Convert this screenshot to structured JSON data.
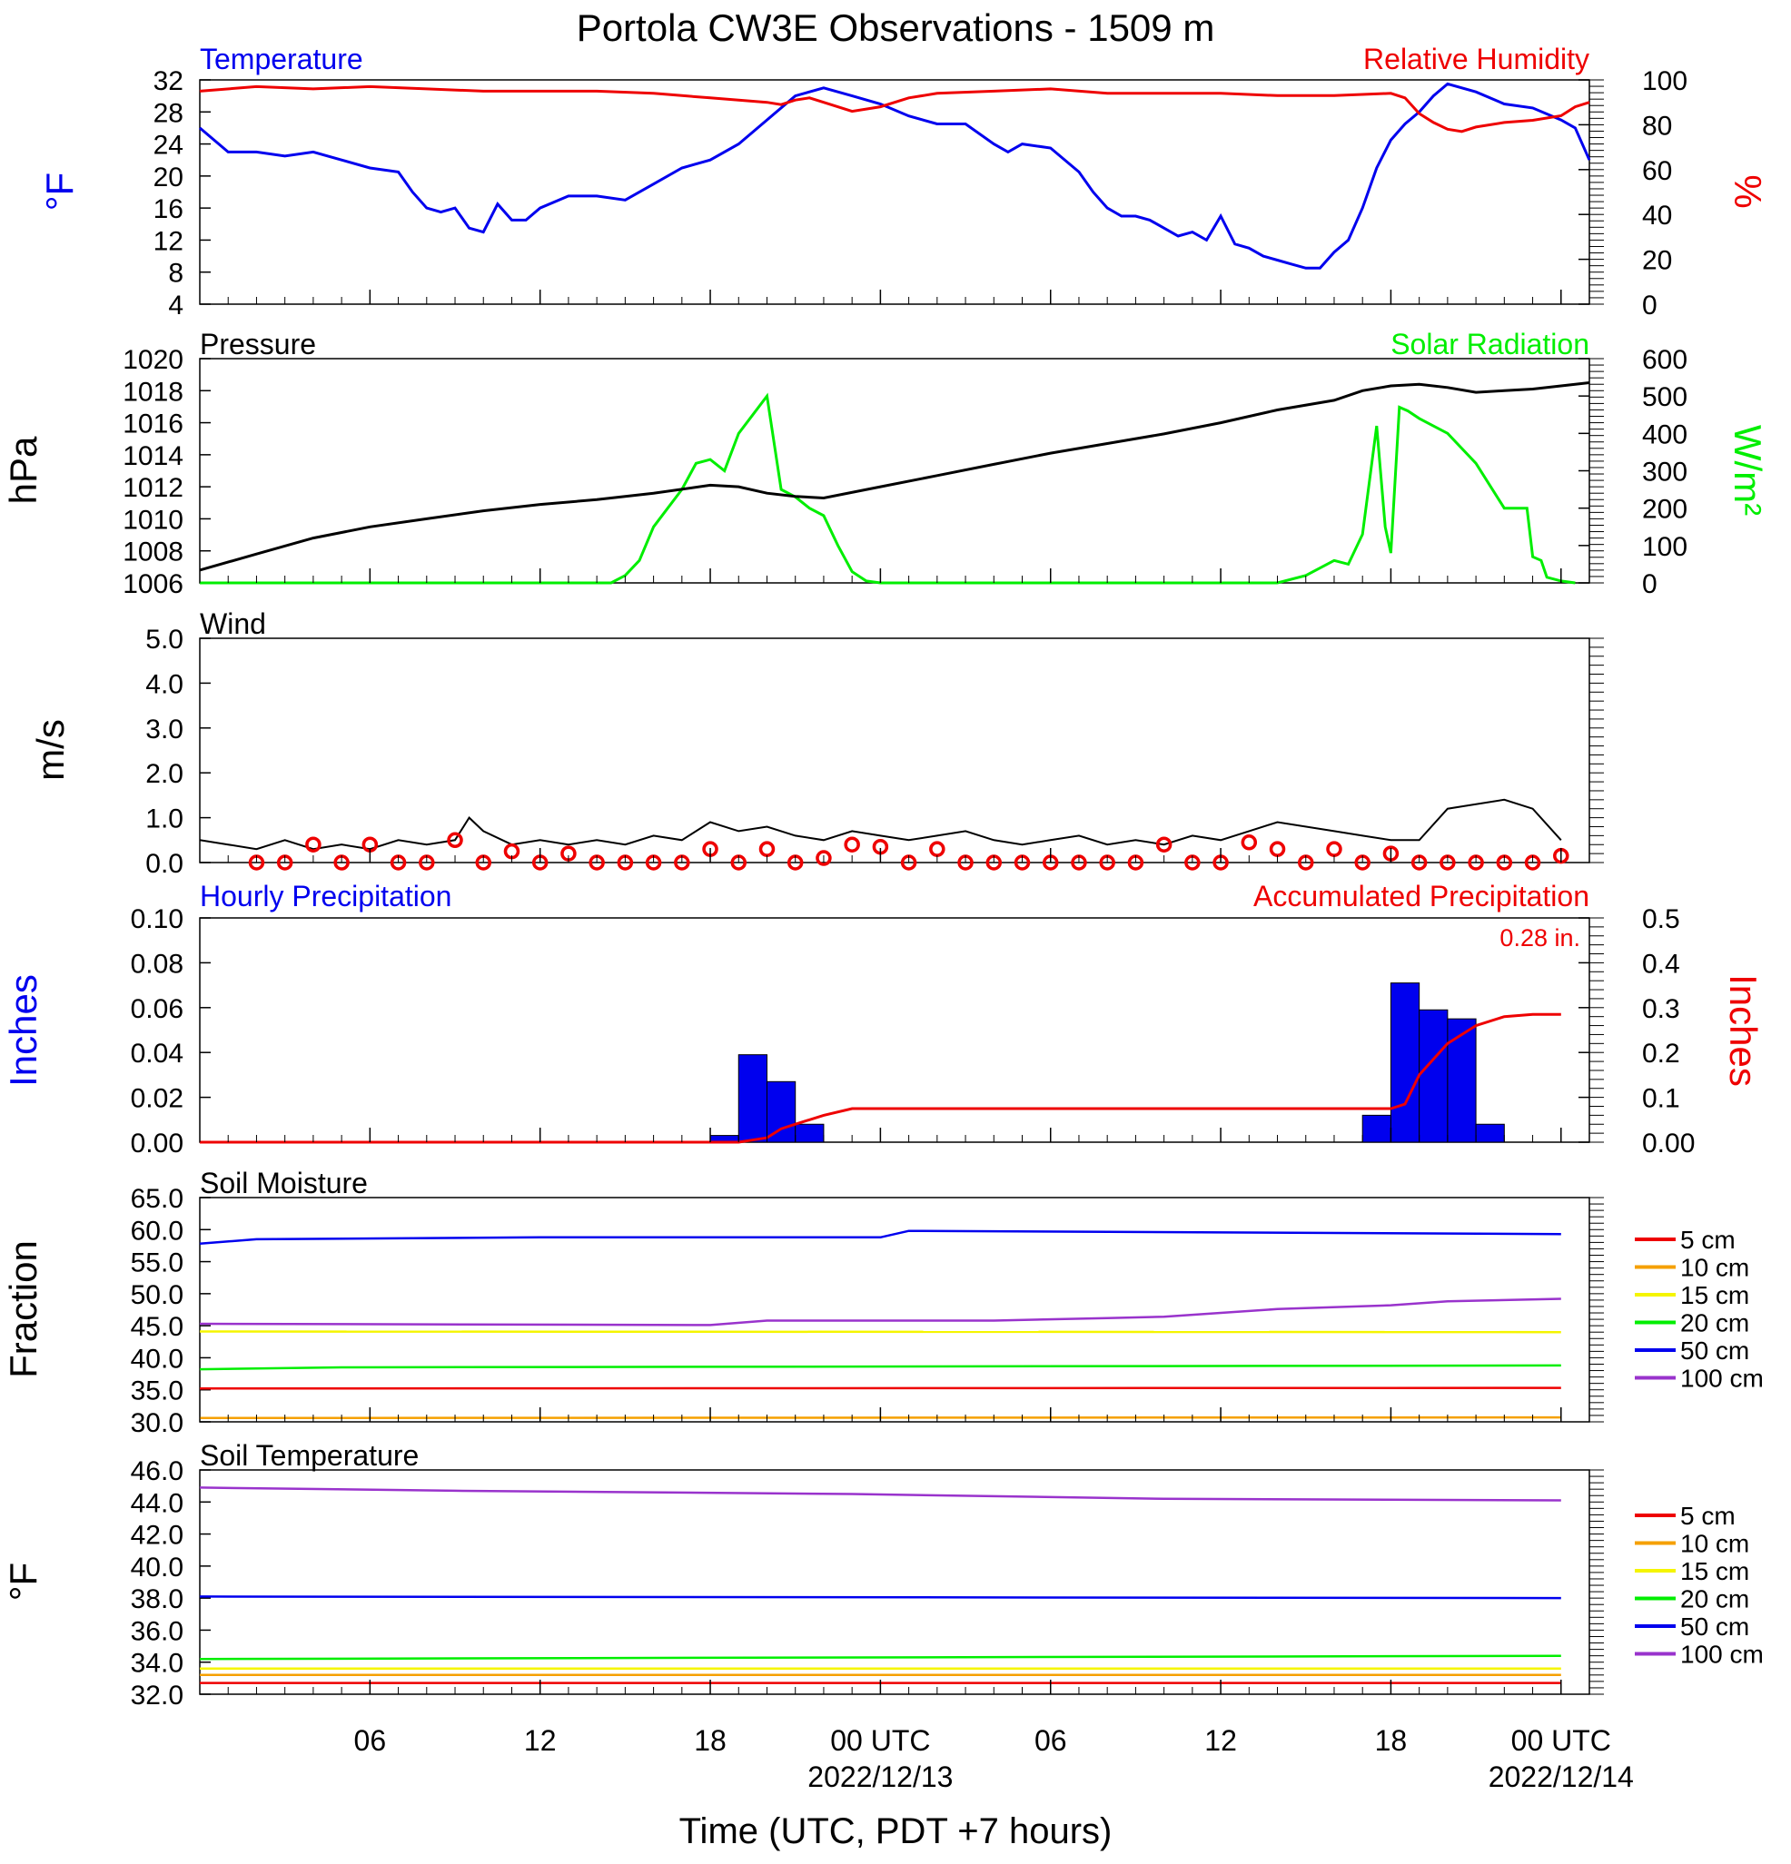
{
  "title": "Portola CW3E Observations - 1509 m",
  "colors": {
    "blue": "#0000ee",
    "red": "#ee0000",
    "green": "#00ee00",
    "orange": "#f5a000",
    "yellow": "#f5f500",
    "purple": "#9933cc",
    "black": "#000000"
  },
  "x_axis": {
    "label": "Time (UTC, PDT +7 hours)",
    "ticks": [
      {
        "h": 6,
        "label": "06",
        "sub": ""
      },
      {
        "h": 12,
        "label": "12",
        "sub": ""
      },
      {
        "h": 18,
        "label": "18",
        "sub": ""
      },
      {
        "h": 24,
        "label": "00 UTC",
        "sub": "2022/12/13"
      },
      {
        "h": 30,
        "label": "06",
        "sub": ""
      },
      {
        "h": 36,
        "label": "12",
        "sub": ""
      },
      {
        "h": 42,
        "label": "18",
        "sub": ""
      },
      {
        "h": 48,
        "label": "00 UTC",
        "sub": "2022/12/14"
      }
    ]
  },
  "legend_soil": [
    "5 cm",
    "10 cm",
    "15 cm",
    "20 cm",
    "50 cm",
    "100 cm"
  ],
  "panels": {
    "temp": {
      "left_title": "Temperature",
      "right_title": "Relative Humidity",
      "left_unit": "°F",
      "right_unit": "%",
      "left_ticks": [
        "4",
        "8",
        "12",
        "16",
        "20",
        "24",
        "28",
        "32"
      ],
      "right_ticks": [
        "0",
        "20",
        "40",
        "60",
        "80",
        "100"
      ]
    },
    "pressure": {
      "left_title": "Pressure",
      "right_title": "Solar Radiation",
      "left_unit": "hPa",
      "right_unit": "W/m²",
      "left_ticks": [
        "1006",
        "1008",
        "1010",
        "1012",
        "1014",
        "1016",
        "1018",
        "1020"
      ],
      "right_ticks": [
        "0",
        "100",
        "200",
        "300",
        "400",
        "500",
        "600"
      ]
    },
    "wind": {
      "left_title": "Wind",
      "left_unit": "m/s",
      "left_ticks": [
        "0.0",
        "1.0",
        "2.0",
        "3.0",
        "4.0",
        "5.0"
      ]
    },
    "precip": {
      "left_title": "Hourly Precipitation",
      "right_title": "Accumulated Precipitation",
      "left_unit": "Inches",
      "right_unit": "Inches",
      "total": "0.28 in.",
      "left_ticks": [
        "0.00",
        "0.02",
        "0.04",
        "0.06",
        "0.08",
        "0.10"
      ],
      "right_ticks": [
        "0.00",
        "0.1",
        "0.2",
        "0.3",
        "0.4",
        "0.5"
      ]
    },
    "soilm": {
      "left_title": "Soil Moisture",
      "left_unit": "Fraction",
      "left_ticks": [
        "30.0",
        "35.0",
        "40.0",
        "45.0",
        "50.0",
        "55.0",
        "60.0",
        "65.0"
      ]
    },
    "soilt": {
      "left_title": "Soil Temperature",
      "left_unit": "°F",
      "left_ticks": [
        "32.0",
        "34.0",
        "36.0",
        "38.0",
        "40.0",
        "42.0",
        "44.0",
        "46.0"
      ]
    }
  },
  "chart_data": [
    {
      "type": "line",
      "panel": "temp",
      "series": [
        {
          "name": "Temperature",
          "axis": "left",
          "x": [
            0,
            1,
            2,
            3,
            4,
            5,
            6,
            7,
            7.5,
            8,
            8.5,
            9,
            9.5,
            10,
            10.5,
            11,
            11.5,
            12,
            13,
            14,
            15,
            16,
            17,
            18,
            19,
            20,
            21,
            22,
            23,
            24,
            25,
            26,
            27,
            28,
            28.5,
            29,
            30,
            31,
            31.5,
            32,
            32.5,
            33,
            33.5,
            34,
            34.5,
            35,
            35.5,
            36,
            36.5,
            37,
            37.5,
            38,
            38.5,
            39,
            39.5,
            40,
            40.5,
            41,
            41.5,
            42,
            42.5,
            43,
            43.5,
            44,
            45,
            46,
            47,
            48,
            48.5,
            49
          ],
          "y": [
            26,
            23,
            23,
            22.5,
            23,
            22,
            21,
            20.5,
            18,
            16,
            15.5,
            16,
            13.5,
            13,
            16.5,
            14.5,
            14.5,
            16,
            17.5,
            17.5,
            17,
            19,
            21,
            22,
            24,
            27,
            30,
            31,
            30,
            29,
            27.5,
            26.5,
            26.5,
            24,
            23,
            24,
            23.5,
            20.5,
            18,
            16,
            15,
            15,
            14.5,
            13.5,
            12.5,
            13,
            12,
            15,
            11.5,
            11,
            10,
            9.5,
            9,
            8.5,
            8.5,
            10.5,
            12,
            16,
            21,
            24.5,
            26.5,
            28,
            30,
            31.5,
            30.5,
            29,
            28.5,
            27,
            26,
            22
          ]
        },
        {
          "name": "Relative Humidity",
          "axis": "right",
          "x": [
            0,
            2,
            4,
            6,
            8,
            10,
            12,
            14,
            16,
            17,
            18,
            19,
            20,
            20.5,
            21,
            21.5,
            22,
            23,
            24,
            25,
            26,
            28,
            30,
            32,
            34,
            36,
            38,
            40,
            42,
            42.5,
            43,
            43.5,
            44,
            44.5,
            45,
            46,
            47,
            48,
            48.5,
            49
          ],
          "y": [
            95,
            97,
            96,
            97,
            96,
            95,
            95,
            95,
            94,
            93,
            92,
            91,
            90,
            89,
            91,
            92,
            90,
            86,
            88,
            92,
            94,
            95,
            96,
            94,
            94,
            94,
            93,
            93,
            94,
            92,
            85,
            81,
            78,
            77,
            79,
            81,
            82,
            84,
            88,
            90
          ]
        }
      ]
    },
    {
      "type": "line",
      "panel": "pressure",
      "series": [
        {
          "name": "Pressure",
          "axis": "left",
          "x": [
            0,
            2,
            4,
            6,
            8,
            10,
            12,
            14,
            16,
            18,
            19,
            20,
            21,
            22,
            24,
            26,
            28,
            30,
            32,
            34,
            36,
            38,
            40,
            41,
            42,
            43,
            44,
            45,
            46,
            47,
            48,
            49
          ],
          "y": [
            1006.8,
            1007.8,
            1008.8,
            1009.5,
            1010,
            1010.5,
            1010.9,
            1011.2,
            1011.6,
            1012.1,
            1012,
            1011.6,
            1011.4,
            1011.3,
            1012,
            1012.7,
            1013.4,
            1014.1,
            1014.7,
            1015.3,
            1016,
            1016.8,
            1017.4,
            1018,
            1018.3,
            1018.4,
            1018.2,
            1017.9,
            1018,
            1018.1,
            1018.3,
            1018.5
          ]
        },
        {
          "name": "Solar Radiation",
          "axis": "right",
          "x": [
            0,
            14.5,
            15,
            15.5,
            16,
            16.5,
            17,
            17.5,
            18,
            18.5,
            19,
            19.5,
            20,
            20.5,
            21,
            21.5,
            22,
            22.5,
            23,
            23.5,
            24,
            30,
            38,
            39,
            40,
            40.5,
            41,
            41.5,
            41.8,
            42,
            42.3,
            42.6,
            43,
            44,
            45,
            46,
            46.8,
            47,
            47.3,
            47.5,
            48,
            48.5
          ],
          "y": [
            0,
            0,
            20,
            60,
            150,
            200,
            250,
            320,
            330,
            300,
            400,
            450,
            500,
            250,
            230,
            200,
            180,
            100,
            30,
            5,
            0,
            0,
            0,
            20,
            60,
            50,
            130,
            420,
            150,
            80,
            470,
            460,
            440,
            400,
            320,
            200,
            200,
            70,
            60,
            15,
            5,
            0
          ]
        }
      ]
    },
    {
      "type": "line",
      "panel": "wind",
      "series": [
        {
          "name": "Wind speed",
          "x": [
            0,
            1,
            2,
            3,
            4,
            5,
            6,
            7,
            8,
            9,
            9.5,
            10,
            11,
            12,
            13,
            14,
            15,
            16,
            17,
            18,
            19,
            20,
            21,
            22,
            23,
            24,
            25,
            26,
            27,
            28,
            29,
            30,
            31,
            32,
            33,
            34,
            35,
            36,
            37,
            38,
            40,
            41,
            42,
            43,
            44,
            45,
            46,
            47,
            48
          ],
          "y": [
            0.5,
            0.4,
            0.3,
            0.5,
            0.3,
            0.4,
            0.3,
            0.5,
            0.4,
            0.5,
            1.0,
            0.7,
            0.4,
            0.5,
            0.4,
            0.5,
            0.4,
            0.6,
            0.5,
            0.9,
            0.7,
            0.8,
            0.6,
            0.5,
            0.7,
            0.6,
            0.5,
            0.6,
            0.7,
            0.5,
            0.4,
            0.5,
            0.6,
            0.4,
            0.5,
            0.4,
            0.6,
            0.5,
            0.7,
            0.9,
            0.7,
            0.6,
            0.5,
            0.5,
            1.2,
            1.3,
            1.4,
            1.2,
            0.5
          ]
        },
        {
          "name": "Wind observations",
          "x": [
            2,
            3,
            4,
            5,
            6,
            7,
            8,
            9,
            10,
            11,
            12,
            13,
            14,
            15,
            16,
            17,
            18,
            19,
            20,
            21,
            22,
            23,
            24,
            25,
            26,
            27,
            28,
            29,
            30,
            31,
            32,
            33,
            34,
            35,
            36,
            37,
            38,
            39,
            40,
            41,
            42,
            43,
            44,
            45,
            46,
            47,
            48
          ],
          "y": [
            0,
            0,
            0.4,
            0,
            0.4,
            0,
            0,
            0.5,
            0,
            0.25,
            0,
            0.2,
            0,
            0,
            0,
            0,
            0.3,
            0,
            0.3,
            0,
            0.1,
            0.4,
            0.35,
            0,
            0.3,
            0,
            0,
            0,
            0,
            0,
            0,
            0,
            0.4,
            0,
            0,
            0.45,
            0.3,
            0,
            0.3,
            0,
            0.2,
            0,
            0,
            0,
            0,
            0,
            0.15
          ]
        }
      ]
    },
    {
      "type": "bar",
      "panel": "precip",
      "hourly_x": [
        19,
        20,
        21,
        22,
        23,
        42,
        43,
        44,
        45,
        46,
        47
      ],
      "hourly_y": [
        0.003,
        0.039,
        0.027,
        0.008,
        0,
        0.012,
        0.071,
        0.059,
        0.055,
        0.008,
        0
      ],
      "accum_x": [
        0,
        19,
        20,
        20.5,
        21,
        22,
        23,
        24,
        42,
        42.5,
        43,
        44,
        45,
        46,
        47,
        48
      ],
      "accum_y": [
        0,
        0,
        0.01,
        0.03,
        0.04,
        0.06,
        0.075,
        0.075,
        0.075,
        0.085,
        0.15,
        0.22,
        0.26,
        0.28,
        0.285,
        0.285
      ]
    },
    {
      "type": "line",
      "panel": "soilm",
      "series": [
        {
          "name": "5 cm",
          "x": [
            0,
            48
          ],
          "y": [
            35.2,
            35.3
          ]
        },
        {
          "name": "10 cm",
          "x": [
            0,
            48
          ],
          "y": [
            30.6,
            30.7
          ]
        },
        {
          "name": "15 cm",
          "x": [
            0,
            48
          ],
          "y": [
            44.1,
            44.0
          ]
        },
        {
          "name": "20 cm",
          "x": [
            0,
            5,
            48
          ],
          "y": [
            38.2,
            38.5,
            38.8
          ]
        },
        {
          "name": "50 cm",
          "x": [
            0,
            2,
            12,
            24,
            25,
            48
          ],
          "y": [
            57.8,
            58.5,
            58.8,
            58.8,
            59.8,
            59.3
          ]
        },
        {
          "name": "100 cm",
          "x": [
            0,
            18,
            20,
            28,
            32,
            34,
            36,
            38,
            42,
            44,
            48
          ],
          "y": [
            45.3,
            45.1,
            45.8,
            45.8,
            46.2,
            46.4,
            47.0,
            47.6,
            48.2,
            48.8,
            49.2
          ]
        }
      ]
    },
    {
      "type": "line",
      "panel": "soilt",
      "series": [
        {
          "name": "5 cm",
          "x": [
            0,
            48
          ],
          "y": [
            32.7,
            32.7
          ]
        },
        {
          "name": "10 cm",
          "x": [
            0,
            48
          ],
          "y": [
            33.2,
            33.2
          ]
        },
        {
          "name": "15 cm",
          "x": [
            0,
            48
          ],
          "y": [
            33.6,
            33.6
          ]
        },
        {
          "name": "20 cm",
          "x": [
            0,
            48
          ],
          "y": [
            34.2,
            34.4
          ]
        },
        {
          "name": "50 cm",
          "x": [
            0,
            48
          ],
          "y": [
            38.1,
            38.0
          ]
        },
        {
          "name": "100 cm",
          "x": [
            0,
            9,
            23,
            34,
            48
          ],
          "y": [
            44.9,
            44.7,
            44.5,
            44.2,
            44.1
          ]
        }
      ]
    }
  ]
}
